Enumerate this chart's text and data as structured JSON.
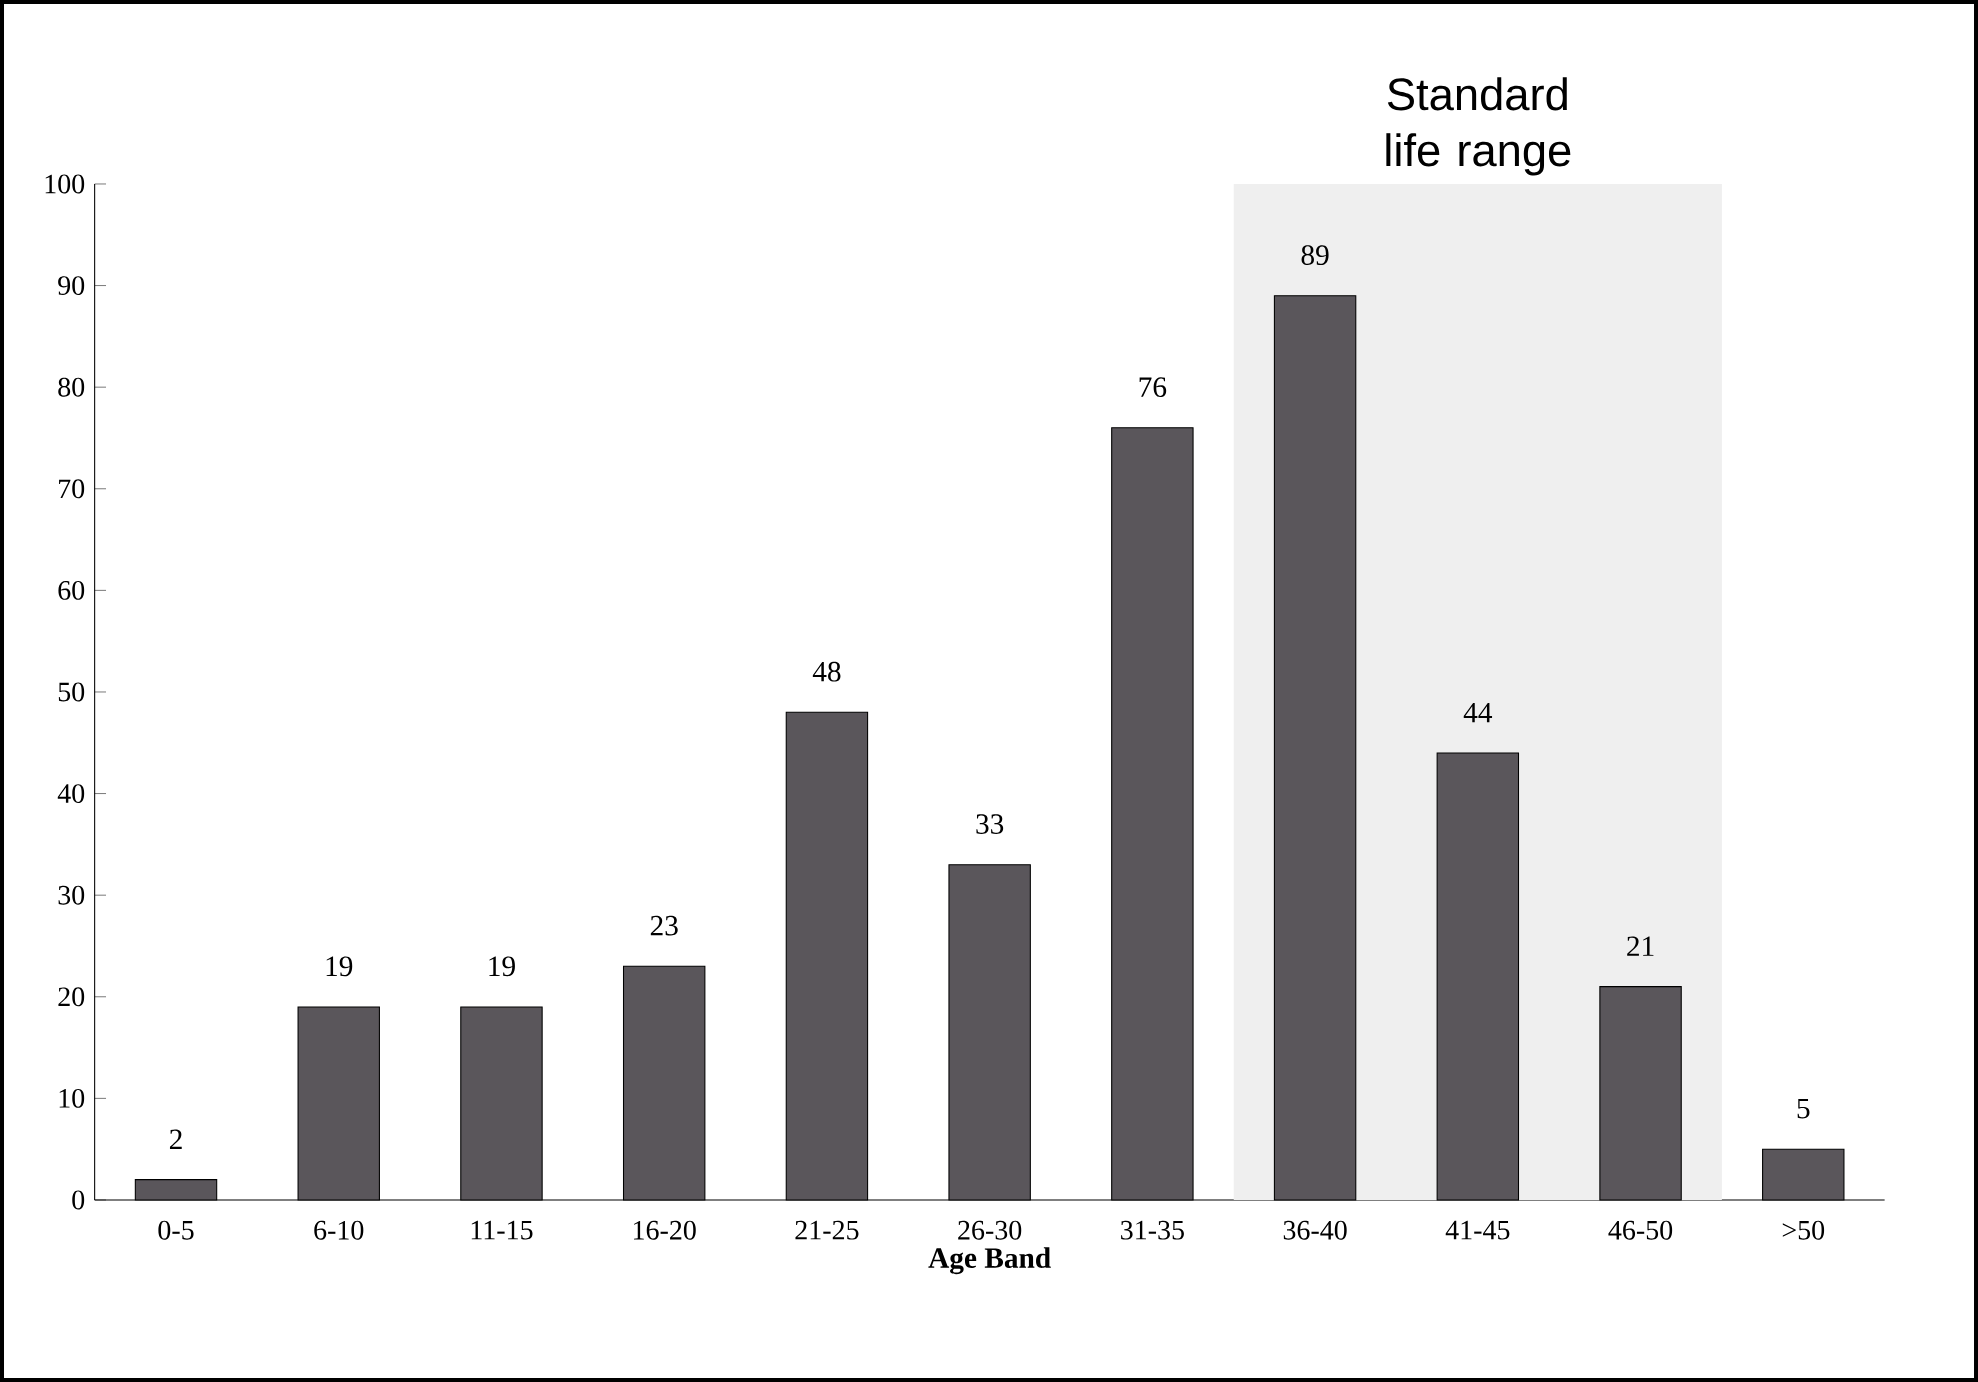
{
  "chart_data": {
    "type": "bar",
    "xlabel": "**Age Band**",
    "categories": [
      "0-5",
      "6-10",
      "11-15",
      "16-20",
      "21-25",
      "26-30",
      "31-35",
      "36-40",
      "41-45",
      "46-50",
      ">50"
    ],
    "values": [
      2,
      19,
      19,
      23,
      48,
      33,
      76,
      89,
      44,
      21,
      5
    ],
    "color": "#5a565b",
    "data_labels": true,
    "ylim": [
      0,
      100
    ],
    "yticks": [
      0,
      10,
      20,
      30,
      40,
      50,
      60,
      70,
      80,
      90,
      100
    ],
    "grid": false,
    "bands": [
      {
        "axis": "x",
        "from": "36-40",
        "to": "46-50",
        "label": "Standard life range",
        "color": "#efefef"
      }
    ]
  }
}
